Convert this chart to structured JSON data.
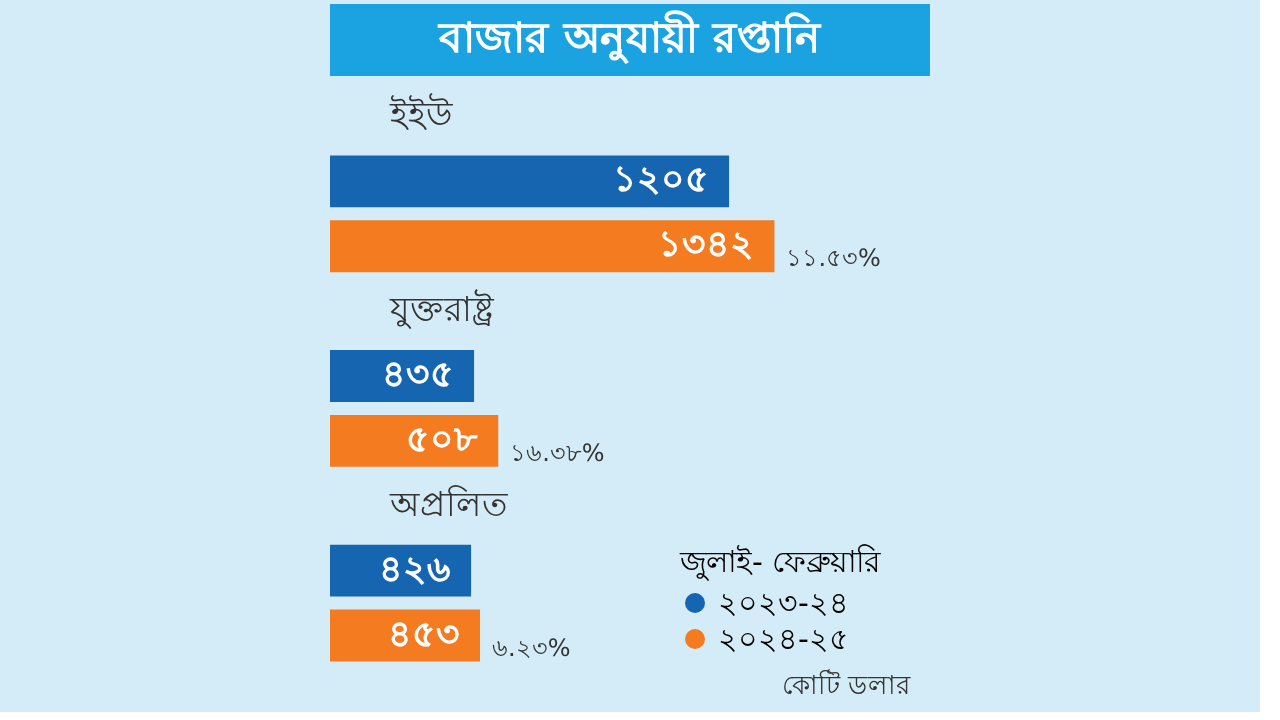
{
  "chart_data": {
    "type": "bar",
    "orientation": "horizontal",
    "title": "বাজার অনুযায়ী রপ্তানি",
    "categories": [
      "ইইউ",
      "যুক্তরাষ্ট্র",
      "অপ্রলিত"
    ],
    "series": [
      {
        "name": "২০২৩-২৪",
        "color": "#1565b0",
        "values": [
          1205,
          435,
          426
        ],
        "value_labels": [
          "১২০৫",
          "৪৩৫",
          "৪২৬"
        ]
      },
      {
        "name": "২০২৪-২৫",
        "color": "#f47b20",
        "values": [
          1342,
          508,
          453
        ],
        "value_labels": [
          "১৩৪২",
          "৫০৮",
          "৪৫৩"
        ]
      }
    ],
    "legend_title": "জুলাই- ফেব্রুয়ারি",
    "legend": "bottom right",
    "annotations": [
      "১১.৫৩%",
      "১৬.৩৮%",
      "৬.২৩%",
      "কোটি ডলার"
    ]
  }
}
